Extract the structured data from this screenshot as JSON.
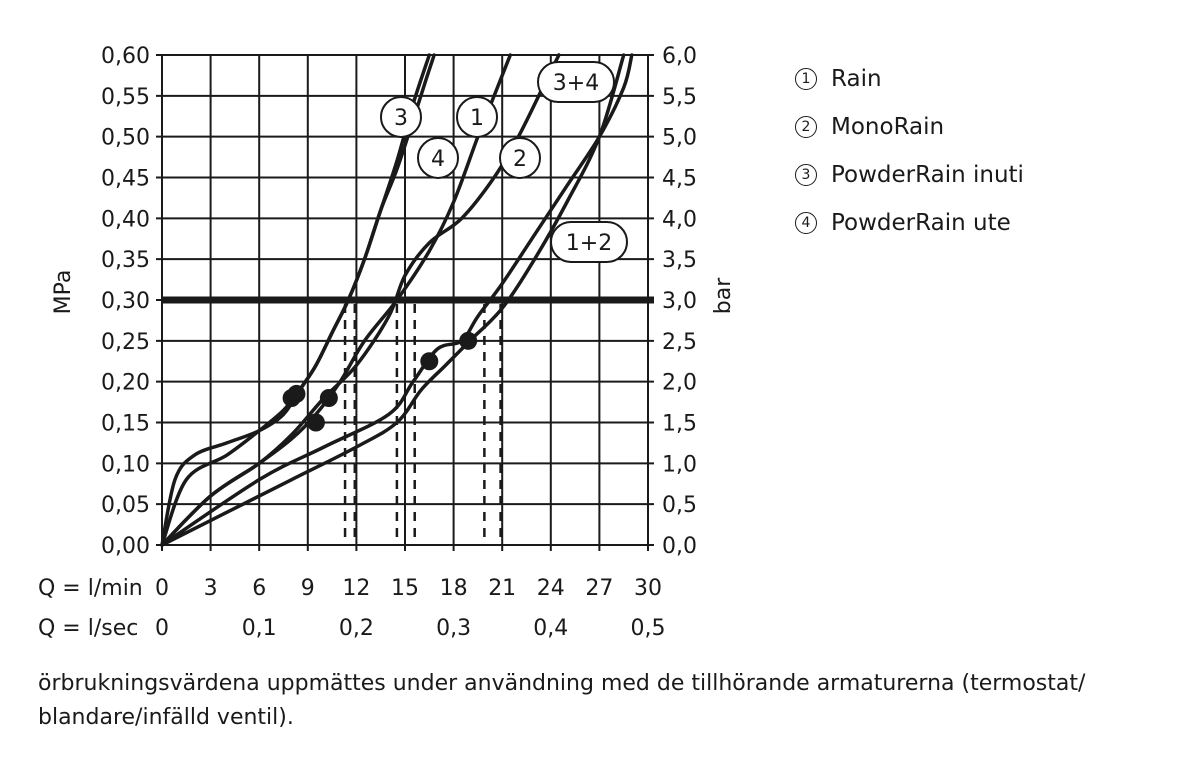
{
  "chart_data": {
    "type": "line",
    "xlabel": "",
    "ylabel": "MPa",
    "ylabel_right": "bar",
    "xlim": [
      0,
      30
    ],
    "ylim": [
      0,
      0.6
    ],
    "ylim_right": [
      0,
      6
    ],
    "x_row1_label": "Q = l/min",
    "x_row2_label": "Q = l/sec",
    "x_ticks": [
      "0",
      "3",
      "6",
      "9",
      "12",
      "15",
      "18",
      "21",
      "24",
      "27",
      "30"
    ],
    "x_ticks_sec": [
      {
        "value": 0,
        "label": "0"
      },
      {
        "value": 6,
        "label": "0,1"
      },
      {
        "value": 12,
        "label": "0,2"
      },
      {
        "value": 18,
        "label": "0,3"
      },
      {
        "value": 24,
        "label": "0,4"
      },
      {
        "value": 30,
        "label": "0,5"
      }
    ],
    "y_ticks": [
      "0,00",
      "0,05",
      "0,10",
      "0,15",
      "0,20",
      "0,25",
      "0,30",
      "0,35",
      "0,40",
      "0,45",
      "0,50",
      "0,55",
      "0,60"
    ],
    "y_ticks_right": [
      "0,0",
      "0,5",
      "1,0",
      "1,5",
      "2,0",
      "2,5",
      "3,0",
      "3,5",
      "4,0",
      "4,5",
      "5,0",
      "5,5",
      "6,0"
    ],
    "grid": true,
    "reference_line": {
      "y": 0.3
    },
    "series": [
      {
        "label": "3",
        "x": [
          0,
          0.8,
          2,
          4,
          6,
          7.5,
          8.5,
          9.5,
          10.5,
          11.5,
          12.5,
          13.5,
          14.5,
          15.5,
          16.3,
          16.8
        ],
        "y": [
          0,
          0.08,
          0.11,
          0.125,
          0.14,
          0.16,
          0.19,
          0.22,
          0.26,
          0.3,
          0.35,
          0.41,
          0.46,
          0.52,
          0.57,
          0.6
        ]
      },
      {
        "label": "4",
        "x": [
          0,
          1.5,
          4,
          6,
          7.5,
          8.5,
          9.5,
          10.5,
          11.5,
          12.5,
          13.5,
          14.5,
          15.5,
          16.5
        ],
        "y": [
          0,
          0.08,
          0.11,
          0.14,
          0.165,
          0.19,
          0.22,
          0.26,
          0.3,
          0.35,
          0.41,
          0.47,
          0.54,
          0.6
        ]
      },
      {
        "label": "1",
        "x": [
          0,
          3,
          6,
          8,
          9.5,
          11,
          12.5,
          14.5,
          16.5,
          18,
          19.5,
          20.5,
          21.5
        ],
        "y": [
          0,
          0.06,
          0.1,
          0.13,
          0.16,
          0.2,
          0.25,
          0.3,
          0.36,
          0.42,
          0.5,
          0.55,
          0.6
        ]
      },
      {
        "label": "2",
        "x": [
          0,
          3,
          6,
          8,
          10,
          12,
          14,
          15,
          16.5,
          18.5,
          20.5,
          22,
          23.5,
          24.5
        ],
        "y": [
          0,
          0.06,
          0.1,
          0.135,
          0.18,
          0.22,
          0.28,
          0.33,
          0.37,
          0.4,
          0.45,
          0.5,
          0.56,
          0.6
        ]
      },
      {
        "label": "3+4",
        "x": [
          0,
          6,
          10,
          14,
          15.5,
          17,
          18.5,
          19.5,
          21,
          23,
          25,
          27,
          28.5,
          29
        ],
        "y": [
          0,
          0.08,
          0.12,
          0.16,
          0.2,
          0.24,
          0.25,
          0.28,
          0.32,
          0.38,
          0.44,
          0.5,
          0.56,
          0.6
        ]
      },
      {
        "label": "1+2",
        "x": [
          0,
          4,
          8,
          12,
          14.5,
          16,
          17.5,
          19,
          21,
          23,
          25,
          27,
          28.5
        ],
        "y": [
          0,
          0.04,
          0.08,
          0.12,
          0.15,
          0.19,
          0.22,
          0.25,
          0.29,
          0.35,
          0.42,
          0.5,
          0.6
        ]
      }
    ],
    "markers": [
      {
        "x": 8.0,
        "y": 0.18
      },
      {
        "x": 8.3,
        "y": 0.185
      },
      {
        "x": 9.5,
        "y": 0.15
      },
      {
        "x": 10.3,
        "y": 0.18
      },
      {
        "x": 16.5,
        "y": 0.225
      },
      {
        "x": 18.9,
        "y": 0.25
      }
    ],
    "dashed_drops": [
      11.3,
      11.9,
      14.5,
      15.6,
      19.9,
      20.9
    ]
  },
  "legend": [
    {
      "num": "1",
      "label": "Rain"
    },
    {
      "num": "2",
      "label": "MonoRain"
    },
    {
      "num": "3",
      "label": "PowderRain inuti"
    },
    {
      "num": "4",
      "label": "PowderRain ute"
    }
  ],
  "caption": "örbrukningsvärdena uppmättes under användning med de tillhörande armaturerna (termostat/ blandare/infälld ventil)."
}
